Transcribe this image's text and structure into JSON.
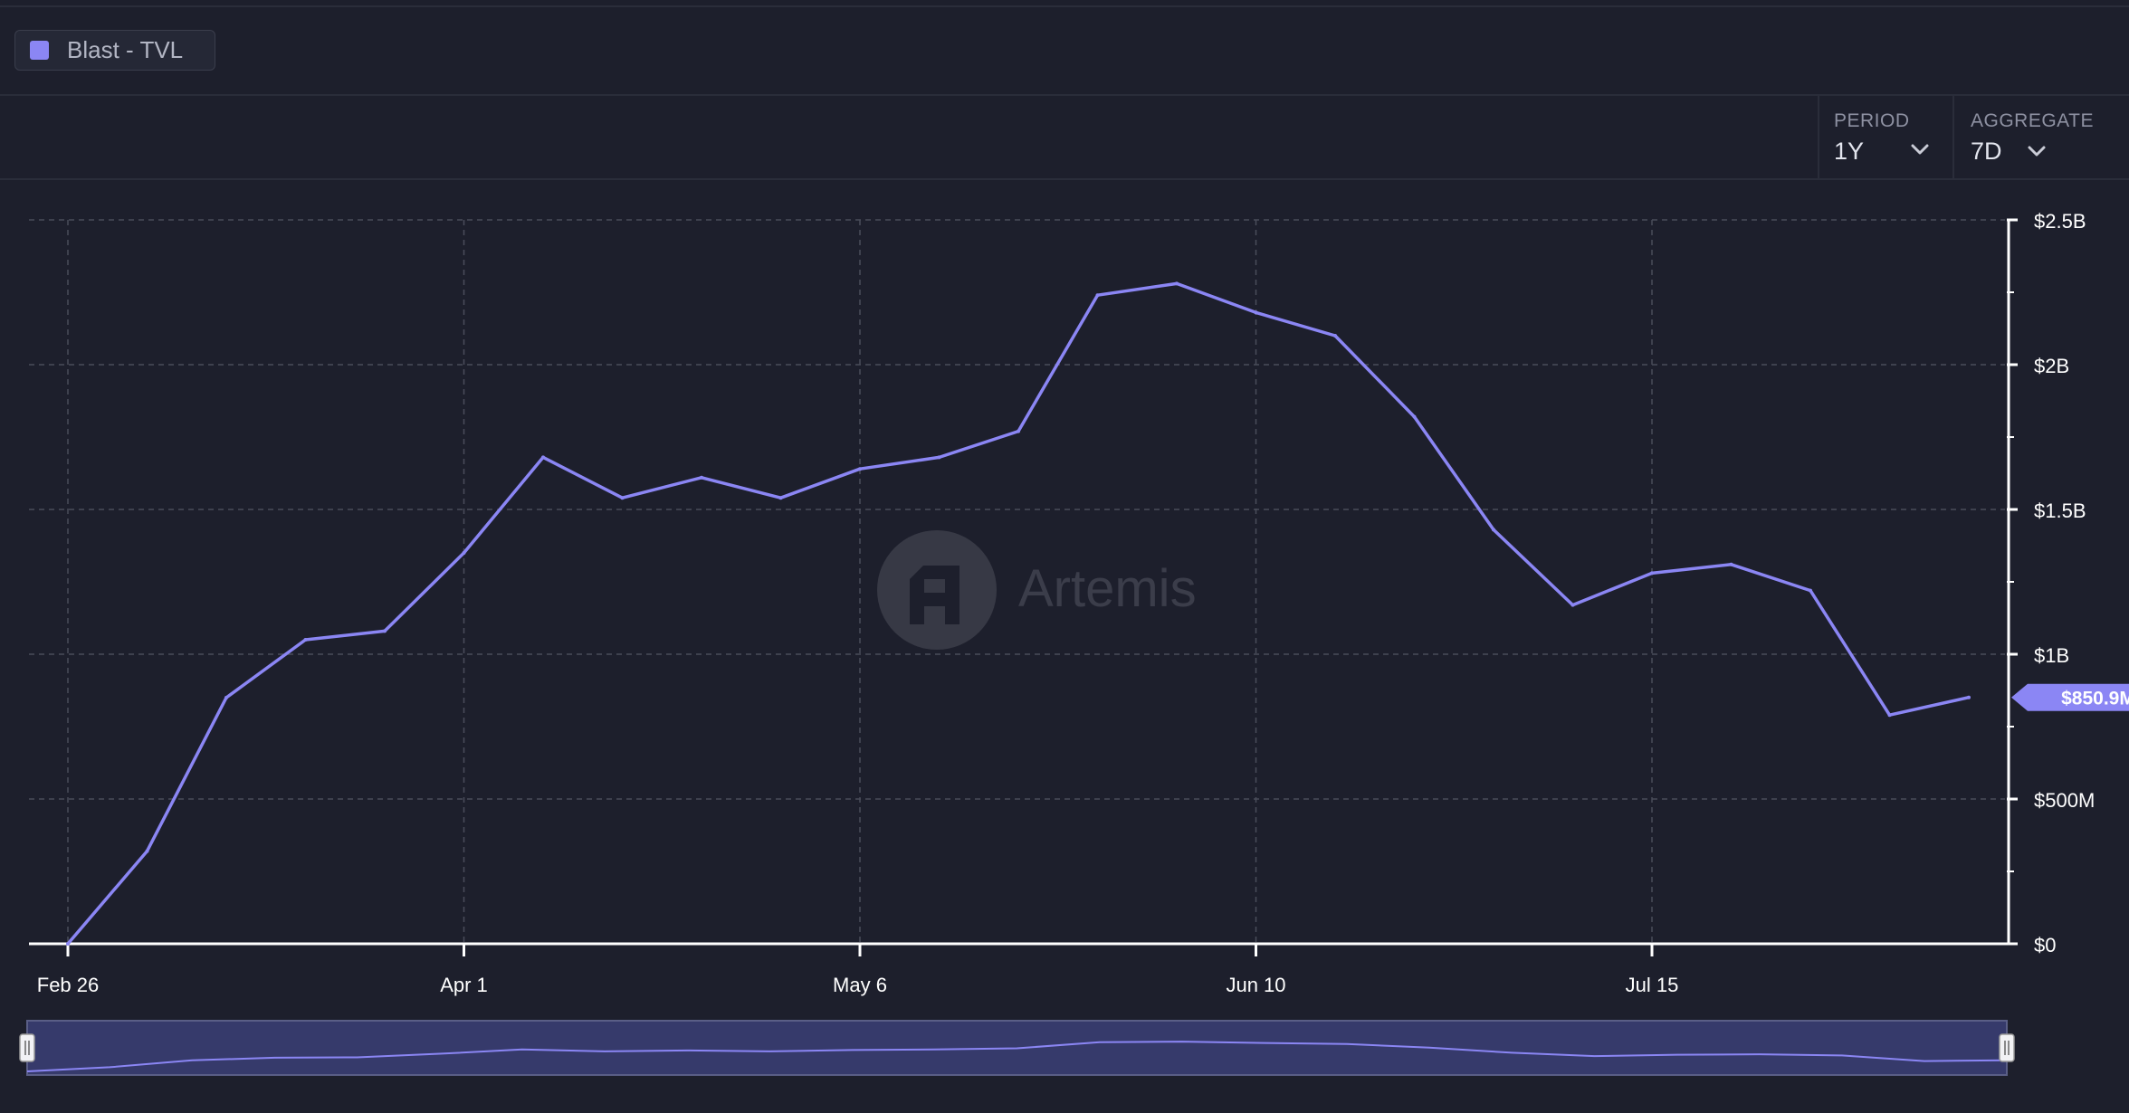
{
  "legend": {
    "label": "Blast - TVL",
    "color": "#8b86f4"
  },
  "controls": {
    "period": {
      "label": "PERIOD",
      "value": "1Y",
      "icon": "chevron-down-icon"
    },
    "aggregate": {
      "label": "AGGREGATE",
      "value": "7D",
      "icon": "chevron-down-icon"
    }
  },
  "watermark": {
    "text": "Artemis",
    "icon": "artemis-logo-icon"
  },
  "chart_data": {
    "type": "line",
    "title": "",
    "xlabel": "",
    "ylabel": "",
    "series": [
      {
        "name": "Blast - TVL",
        "color": "#8b86f4",
        "x": [
          "Feb 26",
          "Mar 4",
          "Mar 11",
          "Mar 18",
          "Mar 25",
          "Apr 1",
          "Apr 8",
          "Apr 15",
          "Apr 22",
          "Apr 29",
          "May 6",
          "May 13",
          "May 20",
          "May 27",
          "Jun 3",
          "Jun 10",
          "Jun 17",
          "Jun 24",
          "Jul 1",
          "Jul 8",
          "Jul 15",
          "Jul 22",
          "Jul 29",
          "Aug 5",
          "Aug 12"
        ],
        "values": [
          0,
          320000000,
          850000000,
          1050000000,
          1080000000,
          1350000000,
          1680000000,
          1540000000,
          1610000000,
          1540000000,
          1640000000,
          1680000000,
          1770000000,
          2240000000,
          2280000000,
          2180000000,
          2100000000,
          1820000000,
          1430000000,
          1170000000,
          1280000000,
          1310000000,
          1220000000,
          790000000,
          850900000
        ]
      }
    ],
    "x_ticks": [
      "Feb 26",
      "Apr 1",
      "May 6",
      "Jun 10",
      "Jul 15"
    ],
    "y_ticks": [
      {
        "value": 0,
        "label": "$0"
      },
      {
        "value": 500000000,
        "label": "$500M"
      },
      {
        "value": 1000000000,
        "label": "$1B"
      },
      {
        "value": 1500000000,
        "label": "$1.5B"
      },
      {
        "value": 2000000000,
        "label": "$2B"
      },
      {
        "value": 2500000000,
        "label": "$2.5B"
      }
    ],
    "ylim": [
      0,
      2500000000
    ],
    "last_value_label": "$850.9M",
    "grid": true,
    "legend_position": "top-left"
  }
}
